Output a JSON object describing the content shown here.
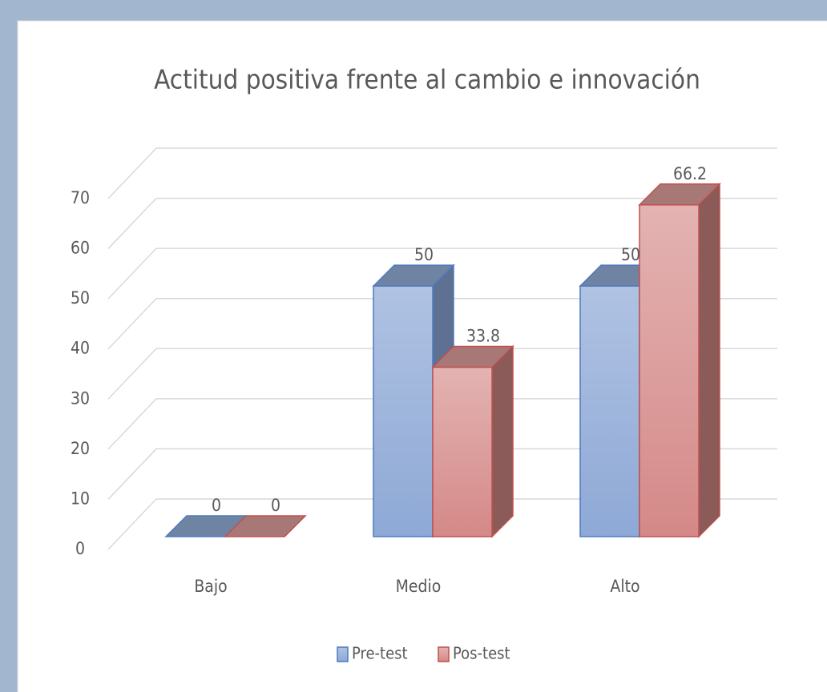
{
  "chart_data": {
    "type": "bar3d",
    "title": "Actitud positiva frente al cambio e innovación",
    "categories": [
      "Bajo",
      "Medio",
      "Alto"
    ],
    "series": [
      {
        "name": "Pre-test",
        "color": "#9bb2dc",
        "values": [
          0,
          50,
          50
        ]
      },
      {
        "name": "Pos-test",
        "color": "#dc9c9b",
        "values": [
          0,
          33.8,
          66.2
        ]
      }
    ],
    "ylim": [
      0,
      70
    ],
    "yticks": [
      0,
      10,
      20,
      30,
      40,
      50,
      60,
      70
    ],
    "grid": true,
    "legend": "bottom"
  }
}
